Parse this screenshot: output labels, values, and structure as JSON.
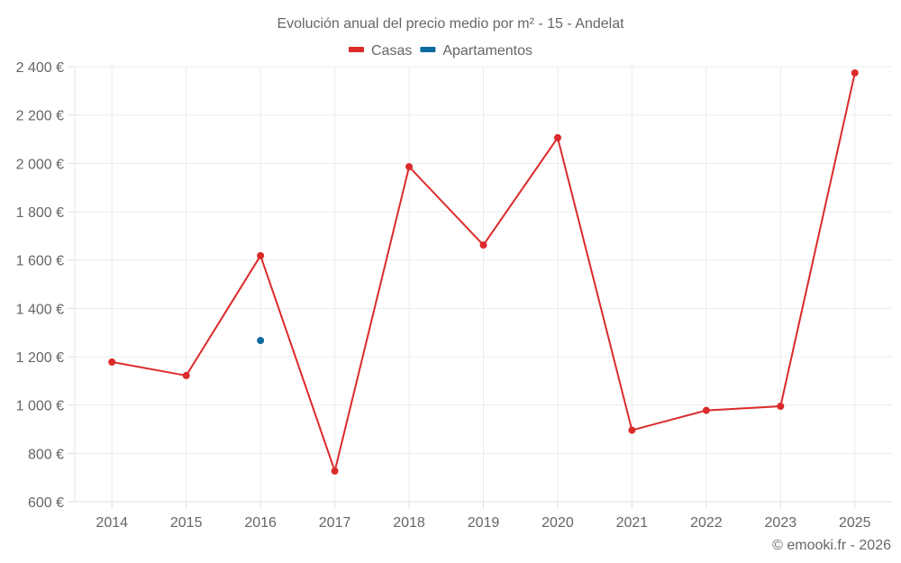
{
  "chart_data": {
    "type": "line",
    "title": "Evolución anual del precio medio por m² - 15 - Andelat",
    "xlabel": "",
    "ylabel": "",
    "categories": [
      "2014",
      "2015",
      "2016",
      "2017",
      "2018",
      "2019",
      "2020",
      "2021",
      "2022",
      "2023",
      "2025"
    ],
    "ylim": [
      600,
      2400
    ],
    "yticks": [
      600,
      800,
      1000,
      1200,
      1400,
      1600,
      1800,
      2000,
      2200,
      2400
    ],
    "ytick_labels": [
      "600 €",
      "800 €",
      "1 000 €",
      "1 200 €",
      "1 400 €",
      "1 600 €",
      "1 800 €",
      "2 000 €",
      "2 200 €",
      "2 400 €"
    ],
    "grid": true,
    "legend_position": "top",
    "series": [
      {
        "name": "Casas",
        "color": "#dc2a2a",
        "values": [
          1178,
          1122,
          1618,
          727,
          1986,
          1662,
          2106,
          896,
          978,
          995,
          2374
        ]
      },
      {
        "name": "Apartamentos",
        "color": "#0a6aa1",
        "values": [
          null,
          null,
          1267,
          null,
          null,
          null,
          null,
          null,
          null,
          null,
          null
        ]
      }
    ]
  },
  "legend": {
    "items": [
      {
        "label": "Casas",
        "color": "#dc2a2a"
      },
      {
        "label": "Apartamentos",
        "color": "#0a6aa1"
      }
    ]
  },
  "credit": "© emooki.fr - 2026"
}
